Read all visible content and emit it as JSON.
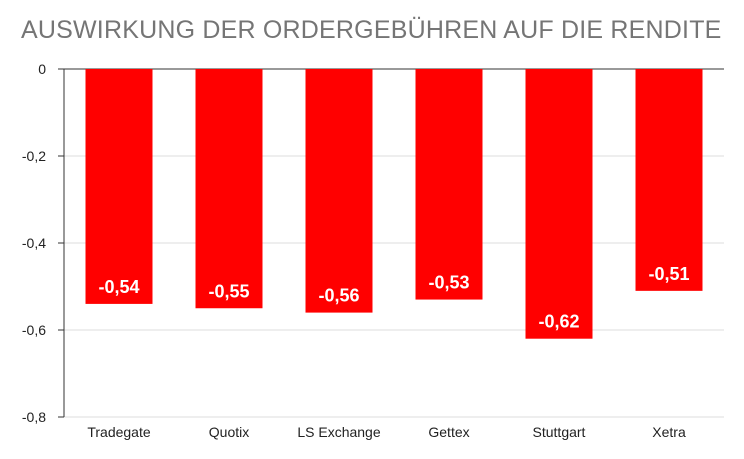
{
  "chart_data": {
    "type": "bar",
    "title": "AUSWIRKUNG DER ORDERGEBÜHREN AUF DIE RENDITE",
    "categories": [
      "Tradegate",
      "Quotix",
      "LS Exchange",
      "Gettex",
      "Stuttgart",
      "Xetra"
    ],
    "values": [
      -0.54,
      -0.55,
      -0.56,
      -0.53,
      -0.62,
      -0.51
    ],
    "value_labels": [
      "-0,54",
      "-0,55",
      "-0,56",
      "-0,53",
      "-0,62",
      "-0,51"
    ],
    "ylim": [
      -0.8,
      0
    ],
    "yticks": [
      0,
      -0.2,
      -0.4,
      -0.6,
      -0.8
    ],
    "ytick_labels": [
      "0",
      "-0,2",
      "-0,4",
      "-0,6",
      "-0,8"
    ],
    "xlabel": "",
    "ylabel": "",
    "grid": true,
    "legend": "none",
    "bar_color": "#ff0000",
    "label_color": "#ffffff"
  }
}
